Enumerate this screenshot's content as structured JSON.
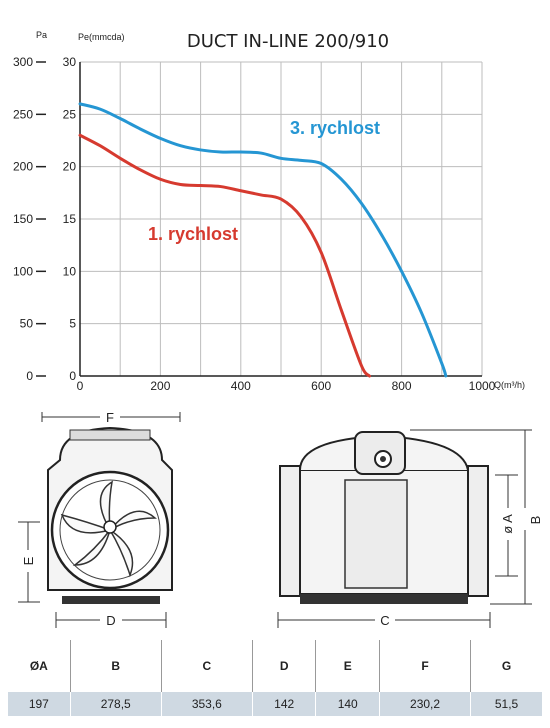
{
  "chart_data": {
    "type": "line",
    "title": "DUCT IN-LINE 200/910",
    "xlabel": "Q(m³/h)",
    "ylabel_left": "Pa",
    "ylabel_right": "Pe(mmcda)",
    "xlim": [
      0,
      1000
    ],
    "ylim_pa": [
      0,
      300
    ],
    "ylim_mmcda": [
      0,
      30
    ],
    "x_ticks": [
      "0",
      "200",
      "400",
      "600",
      "800",
      "1000"
    ],
    "y_ticks_pa": [
      "0",
      "50",
      "100",
      "150",
      "200",
      "250",
      "300"
    ],
    "y_ticks_mmcda": [
      "0",
      "5",
      "10",
      "15",
      "20",
      "25",
      "30"
    ],
    "grid": true,
    "series": [
      {
        "name": "1. rychlost",
        "color": "#d63a2f",
        "x": [
          0,
          50,
          100,
          150,
          200,
          250,
          300,
          350,
          400,
          450,
          500,
          550,
          600,
          650,
          700,
          720
        ],
        "y": [
          23.0,
          22.0,
          20.8,
          19.7,
          18.8,
          18.3,
          18.2,
          18.1,
          17.7,
          17.3,
          16.9,
          15.2,
          11.8,
          6.3,
          1.0,
          0
        ]
      },
      {
        "name": "3. rychlost",
        "color": "#2596d3",
        "x": [
          0,
          50,
          100,
          150,
          200,
          250,
          300,
          350,
          400,
          450,
          500,
          550,
          600,
          650,
          700,
          750,
          800,
          850,
          900,
          910
        ],
        "y": [
          26.0,
          25.5,
          24.6,
          23.6,
          22.7,
          22.0,
          21.6,
          21.4,
          21.4,
          21.3,
          20.8,
          20.6,
          20.3,
          18.8,
          16.5,
          13.5,
          10.0,
          6.0,
          1.2,
          0
        ]
      }
    ]
  },
  "drawing_labels": {
    "front_width": "F",
    "front_base": "D",
    "front_height": "E",
    "side_length": "C",
    "side_diameter": "ø A",
    "side_height": "B"
  },
  "dimensions_table": {
    "headers": [
      "ØA",
      "B",
      "C",
      "D",
      "E",
      "F",
      "G"
    ],
    "values": [
      "197",
      "278,5",
      "353,6",
      "142",
      "140",
      "230,2",
      "51,5"
    ]
  }
}
